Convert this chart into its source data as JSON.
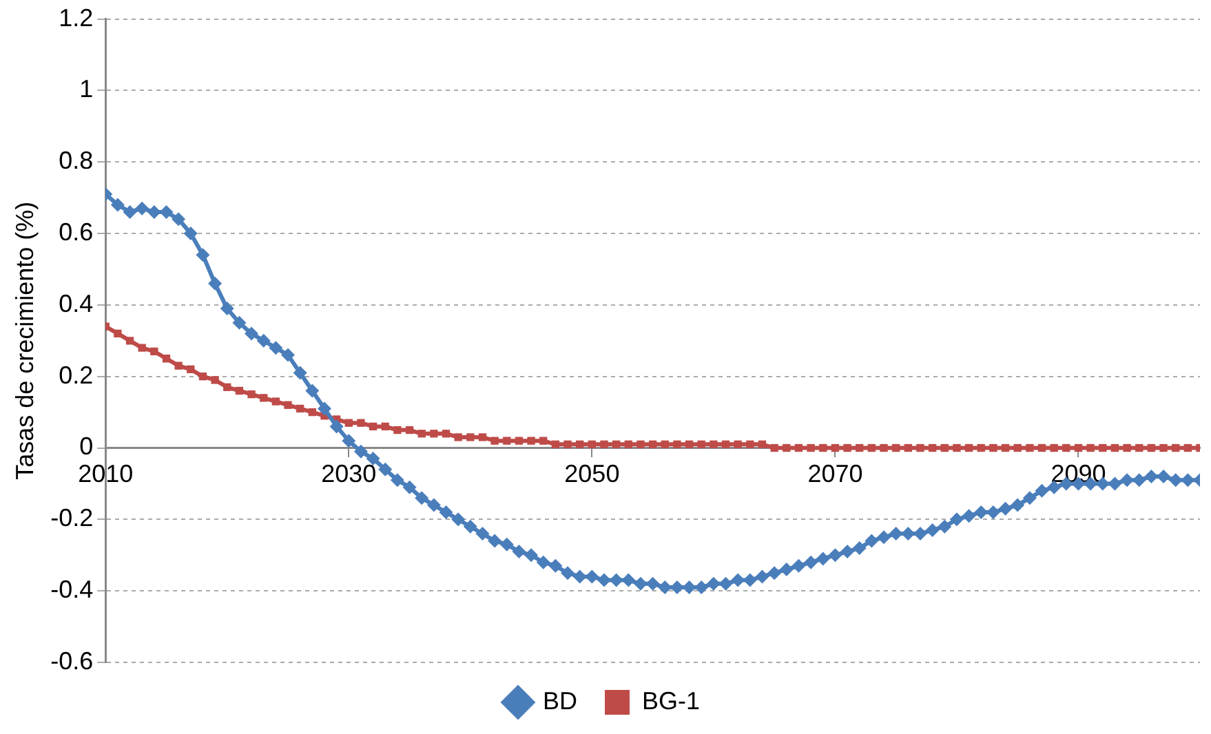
{
  "chart_data": {
    "type": "line",
    "ylabel": "Tasas de crecimiento (%)",
    "x": [
      2010,
      2011,
      2012,
      2013,
      2014,
      2015,
      2016,
      2017,
      2018,
      2019,
      2020,
      2021,
      2022,
      2023,
      2024,
      2025,
      2026,
      2027,
      2028,
      2029,
      2030,
      2031,
      2032,
      2033,
      2034,
      2035,
      2036,
      2037,
      2038,
      2039,
      2040,
      2041,
      2042,
      2043,
      2044,
      2045,
      2046,
      2047,
      2048,
      2049,
      2050,
      2051,
      2052,
      2053,
      2054,
      2055,
      2056,
      2057,
      2058,
      2059,
      2060,
      2061,
      2062,
      2063,
      2064,
      2065,
      2066,
      2067,
      2068,
      2069,
      2070,
      2071,
      2072,
      2073,
      2074,
      2075,
      2076,
      2077,
      2078,
      2079,
      2080,
      2081,
      2082,
      2083,
      2084,
      2085,
      2086,
      2087,
      2088,
      2089,
      2090,
      2091,
      2092,
      2093,
      2094,
      2095,
      2096,
      2097,
      2098,
      2099,
      2100
    ],
    "series": [
      {
        "name": "BD",
        "color": "#4a7ebb",
        "marker": "diamond",
        "values": [
          0.71,
          0.68,
          0.66,
          0.67,
          0.66,
          0.66,
          0.64,
          0.6,
          0.54,
          0.46,
          0.39,
          0.35,
          0.32,
          0.3,
          0.28,
          0.26,
          0.21,
          0.16,
          0.11,
          0.06,
          0.02,
          -0.01,
          -0.03,
          -0.06,
          -0.09,
          -0.11,
          -0.14,
          -0.16,
          -0.18,
          -0.2,
          -0.22,
          -0.24,
          -0.26,
          -0.27,
          -0.29,
          -0.3,
          -0.32,
          -0.33,
          -0.35,
          -0.36,
          -0.36,
          -0.37,
          -0.37,
          -0.37,
          -0.38,
          -0.38,
          -0.39,
          -0.39,
          -0.39,
          -0.39,
          -0.38,
          -0.38,
          -0.37,
          -0.37,
          -0.36,
          -0.35,
          -0.34,
          -0.33,
          -0.32,
          -0.31,
          -0.3,
          -0.29,
          -0.28,
          -0.26,
          -0.25,
          -0.24,
          -0.24,
          -0.24,
          -0.23,
          -0.22,
          -0.2,
          -0.19,
          -0.18,
          -0.18,
          -0.17,
          -0.16,
          -0.14,
          -0.12,
          -0.11,
          -0.1,
          -0.1,
          -0.1,
          -0.1,
          -0.1,
          -0.09,
          -0.09,
          -0.08,
          -0.08,
          -0.09,
          -0.09,
          -0.09
        ]
      },
      {
        "name": "BG-1",
        "color": "#be4b48",
        "marker": "square",
        "values": [
          0.34,
          0.32,
          0.3,
          0.28,
          0.27,
          0.25,
          0.23,
          0.22,
          0.2,
          0.19,
          0.17,
          0.16,
          0.15,
          0.14,
          0.13,
          0.12,
          0.11,
          0.1,
          0.09,
          0.08,
          0.07,
          0.07,
          0.06,
          0.06,
          0.05,
          0.05,
          0.04,
          0.04,
          0.04,
          0.03,
          0.03,
          0.03,
          0.02,
          0.02,
          0.02,
          0.02,
          0.02,
          0.01,
          0.01,
          0.01,
          0.01,
          0.01,
          0.01,
          0.01,
          0.01,
          0.01,
          0.01,
          0.01,
          0.01,
          0.01,
          0.01,
          0.01,
          0.01,
          0.01,
          0.01,
          0,
          0,
          0,
          0,
          0,
          0,
          0,
          0,
          0,
          0,
          0,
          0,
          0,
          0,
          0,
          0,
          0,
          0,
          0,
          0,
          0,
          0,
          0,
          0,
          0,
          0,
          0,
          0,
          0,
          0,
          0,
          0,
          0,
          0,
          0,
          0
        ]
      }
    ],
    "xlim": [
      2010,
      2100
    ],
    "xticks": [
      2010,
      2030,
      2050,
      2070,
      2090
    ],
    "ylim": [
      -0.6,
      1.2
    ],
    "yticks": [
      -0.6,
      -0.4,
      -0.2,
      0,
      0.2,
      0.4,
      0.6,
      0.8,
      1,
      1.2
    ],
    "grid": "y",
    "legend": "bottom",
    "line_style": "solid"
  }
}
